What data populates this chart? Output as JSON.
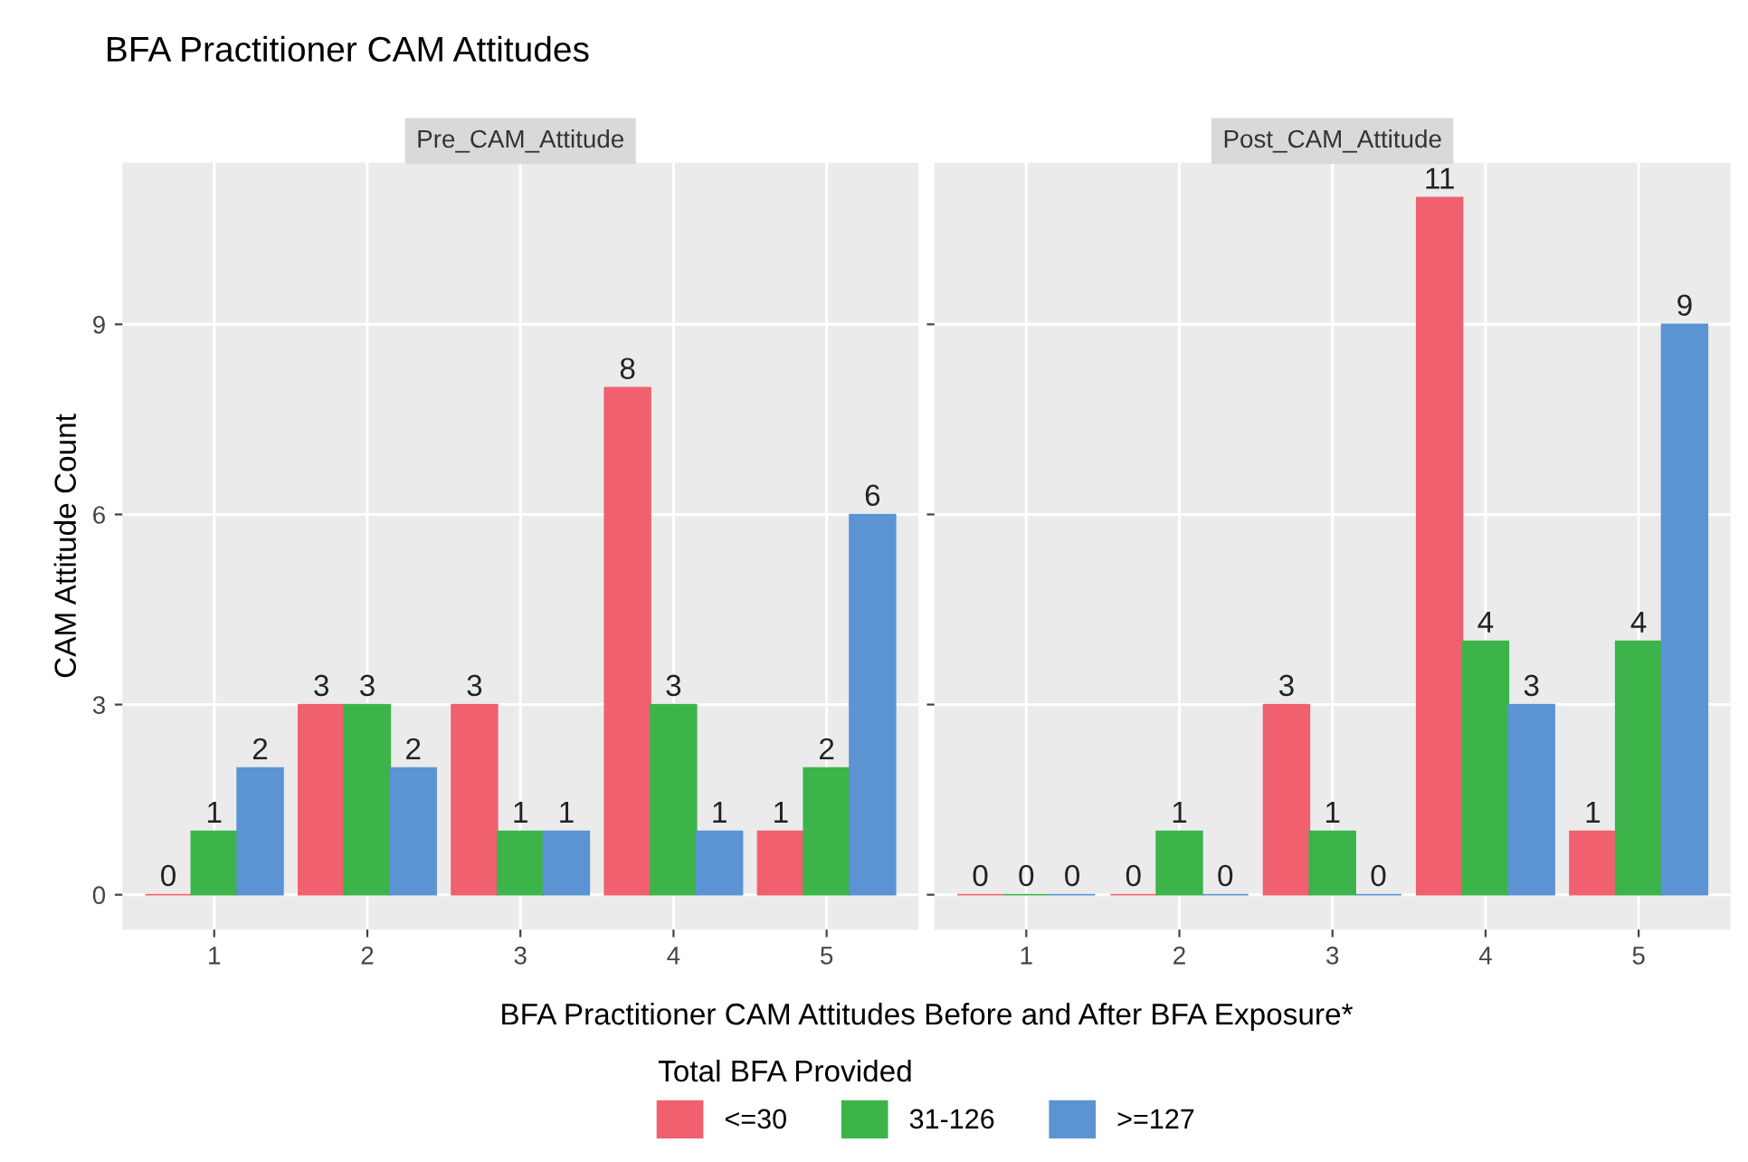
{
  "chart_data": [
    {
      "type": "bar",
      "title": "BFA Practitioner CAM Attitudes",
      "subtitle": "Pre_CAM_Attitude",
      "xlabel": "BFA Practitioner CAM Attitudes Before and After BFA Exposure*",
      "ylabel": "CAM Attitude Count",
      "legend_title": "Total BFA Provided",
      "categories": [
        "1",
        "2",
        "3",
        "4",
        "5"
      ],
      "series": [
        {
          "name": "<=30",
          "color": "#f0606e",
          "values": [
            0,
            3,
            3,
            8,
            1
          ]
        },
        {
          "name": "31-126",
          "color": "#3cb44a",
          "values": [
            1,
            3,
            1,
            3,
            2
          ]
        },
        {
          "name": ">=127",
          "color": "#5b93d3",
          "values": [
            2,
            2,
            1,
            1,
            6
          ]
        }
      ],
      "ylim": [
        -0.55,
        11.55
      ],
      "yticks": [
        0,
        3,
        6,
        9
      ],
      "grid": true,
      "data_labels": true,
      "legend": "bottom"
    },
    {
      "type": "bar",
      "subtitle": "Post_CAM_Attitude",
      "categories": [
        "1",
        "2",
        "3",
        "4",
        "5"
      ],
      "series": [
        {
          "color": "#f0606e",
          "values": [
            0,
            0,
            3,
            11,
            1
          ]
        },
        {
          "color": "#3cb44a",
          "values": [
            0,
            1,
            1,
            4,
            4
          ]
        },
        {
          "color": "#5b93d3",
          "values": [
            0,
            0,
            0,
            3,
            9
          ]
        }
      ],
      "ylim": [
        -0.55,
        11.55
      ],
      "yticks": [
        0,
        3,
        6,
        9
      ],
      "grid": true,
      "data_labels": true,
      "tick_labels": "x"
    }
  ]
}
